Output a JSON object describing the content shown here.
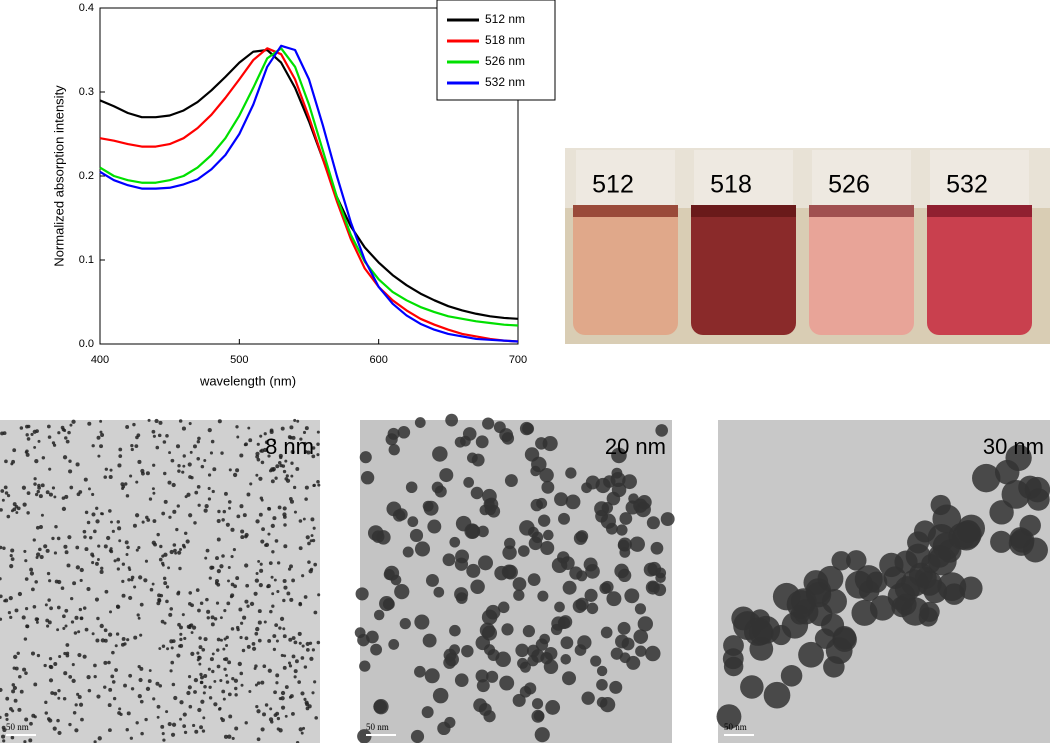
{
  "chart_data": {
    "type": "line",
    "x_label": "wavelength (nm)",
    "y_label": "Normalized absorption intensity",
    "x": [
      400,
      410,
      420,
      430,
      440,
      450,
      460,
      470,
      480,
      490,
      500,
      510,
      520,
      530,
      540,
      550,
      560,
      570,
      580,
      590,
      600,
      610,
      620,
      630,
      640,
      650,
      660,
      670,
      680,
      690,
      700
    ],
    "series": [
      {
        "name": "512 nm",
        "color": "#000000",
        "values": [
          0.29,
          0.283,
          0.275,
          0.27,
          0.27,
          0.272,
          0.278,
          0.288,
          0.302,
          0.318,
          0.335,
          0.348,
          0.35,
          0.335,
          0.305,
          0.265,
          0.22,
          0.175,
          0.14,
          0.115,
          0.097,
          0.082,
          0.07,
          0.06,
          0.052,
          0.045,
          0.04,
          0.036,
          0.033,
          0.031,
          0.03
        ]
      },
      {
        "name": "518 nm",
        "color": "#ff0000",
        "values": [
          0.245,
          0.242,
          0.238,
          0.235,
          0.235,
          0.238,
          0.245,
          0.257,
          0.273,
          0.293,
          0.315,
          0.338,
          0.352,
          0.345,
          0.315,
          0.27,
          0.22,
          0.17,
          0.125,
          0.09,
          0.068,
          0.052,
          0.04,
          0.03,
          0.023,
          0.017,
          0.012,
          0.009,
          0.006,
          0.004,
          0.003
        ]
      },
      {
        "name": "526 nm",
        "color": "#00e000",
        "values": [
          0.21,
          0.2,
          0.195,
          0.192,
          0.192,
          0.195,
          0.2,
          0.21,
          0.225,
          0.245,
          0.272,
          0.305,
          0.34,
          0.352,
          0.33,
          0.285,
          0.23,
          0.175,
          0.13,
          0.098,
          0.077,
          0.062,
          0.052,
          0.044,
          0.038,
          0.033,
          0.03,
          0.027,
          0.025,
          0.023,
          0.022
        ]
      },
      {
        "name": "532 nm",
        "color": "#0000ff",
        "values": [
          0.205,
          0.195,
          0.189,
          0.185,
          0.185,
          0.186,
          0.19,
          0.196,
          0.208,
          0.225,
          0.25,
          0.285,
          0.33,
          0.355,
          0.35,
          0.315,
          0.26,
          0.2,
          0.145,
          0.1,
          0.068,
          0.048,
          0.034,
          0.024,
          0.017,
          0.012,
          0.009,
          0.006,
          0.005,
          0.004,
          0.003
        ]
      }
    ],
    "xlim": [
      400,
      700
    ],
    "xticks": [
      400,
      500,
      600,
      700
    ],
    "ylim": [
      0,
      0.4
    ],
    "yticks": [
      {
        "value": 0,
        "label": "0.0"
      },
      0.1,
      0.2,
      0.3,
      0.4
    ],
    "legend": "top-right"
  },
  "vial_labels": [
    "512",
    "518",
    "526",
    "532"
  ],
  "tem_images": [
    {
      "size_label": "8 nm",
      "scale_label": "50 nm"
    },
    {
      "size_label": "20 nm",
      "scale_label": "50 nm"
    },
    {
      "size_label": "30 nm",
      "scale_label": "50 nm"
    }
  ]
}
